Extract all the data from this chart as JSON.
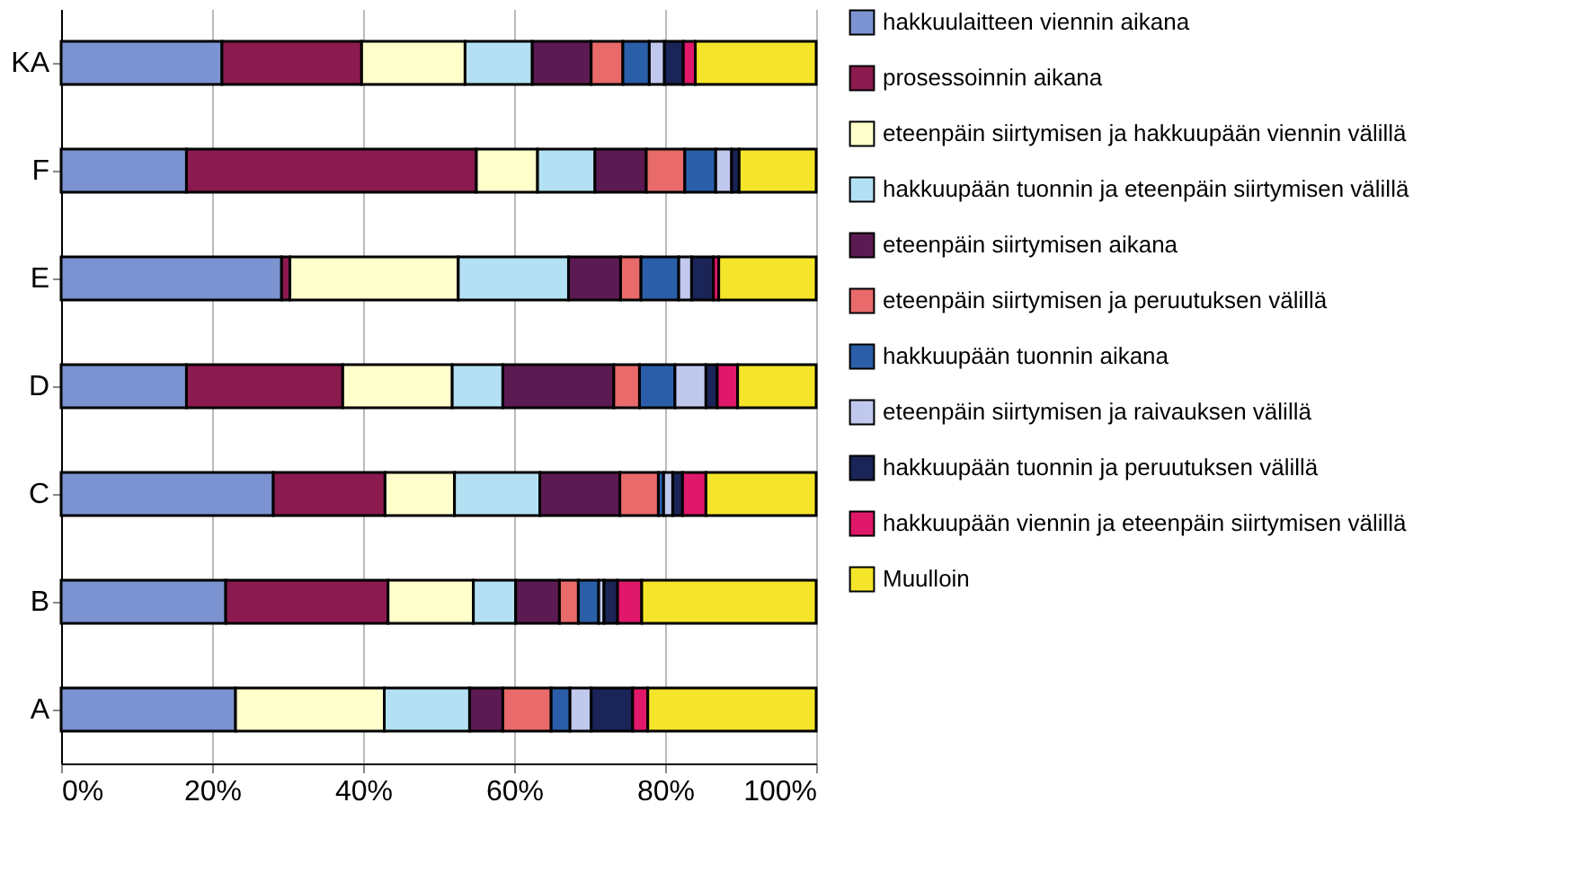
{
  "chart_data": {
    "type": "bar",
    "orientation": "horizontal",
    "stacked": true,
    "categories": [
      "KA",
      "F",
      "E",
      "D",
      "C",
      "B",
      "A"
    ],
    "series": [
      {
        "name": "hakkuulaitteen viennin aikana",
        "color": "#7b93d0",
        "values": [
          21.3,
          16.6,
          29.2,
          16.6,
          28.1,
          21.8,
          23.1
        ]
      },
      {
        "name": "prosessoinnin aikana",
        "color": "#8b1a4f",
        "values": [
          18.5,
          38.4,
          1.1,
          20.7,
          14.8,
          21.5,
          null
        ]
      },
      {
        "name": "eteenpäin siirtymisen ja hakkuupään viennin välillä",
        "color": "#ffffcc",
        "values": [
          13.7,
          8.1,
          22.3,
          14.5,
          9.2,
          11.3,
          19.7
        ]
      },
      {
        "name": "hakkuupään tuonnin ja eteenpäin siirtymisen välillä",
        "color": "#b3e0f2",
        "values": [
          8.9,
          7.6,
          14.6,
          6.7,
          11.3,
          5.6,
          11.3
        ]
      },
      {
        "name": "eteenpäin siirtymisen aikana",
        "color": "#5c1a52",
        "values": [
          7.8,
          6.8,
          6.9,
          14.7,
          10.6,
          5.8,
          4.4
        ]
      },
      {
        "name": "eteenpäin siirtymisen ja peruutuksen välillä",
        "color": "#e86a6a",
        "values": [
          4.2,
          5.1,
          2.7,
          3.4,
          5.1,
          2.5,
          6.4
        ]
      },
      {
        "name": "hakkuupään tuonnin aikana",
        "color": "#2a5ea8",
        "values": [
          3.5,
          4.1,
          5.0,
          4.7,
          0.7,
          2.7,
          2.5
        ]
      },
      {
        "name": "eteenpäin siirtymisen ja raivauksen välillä",
        "color": "#c0c8ee",
        "values": [
          2.0,
          2.1,
          1.7,
          4.1,
          1.2,
          0.7,
          2.8
        ]
      },
      {
        "name": "hakkuupään tuonnin ja peruutuksen välillä",
        "color": "#1a2456",
        "values": [
          2.5,
          1.0,
          2.9,
          1.5,
          1.3,
          1.8,
          5.5
        ]
      },
      {
        "name": "hakkuupään viennin ja eteenpäin siirtymisen välillä",
        "color": "#e0186a",
        "values": [
          1.6,
          null,
          0.7,
          2.7,
          3.1,
          3.2,
          2.0
        ]
      },
      {
        "name": "Muulloin",
        "color": "#f5e52a",
        "values": [
          16.0,
          10.2,
          12.9,
          10.4,
          14.6,
          23.1,
          22.3
        ]
      }
    ],
    "xlim": [
      0,
      100
    ],
    "xticks": [
      {
        "value": 0,
        "label": "0%"
      },
      {
        "value": 20,
        "label": "20%"
      },
      {
        "value": 40,
        "label": "40%"
      },
      {
        "value": 60,
        "label": "60%"
      },
      {
        "value": 80,
        "label": "80%"
      },
      {
        "value": 100,
        "label": "100%"
      }
    ],
    "grid": "x",
    "legend": "right"
  }
}
